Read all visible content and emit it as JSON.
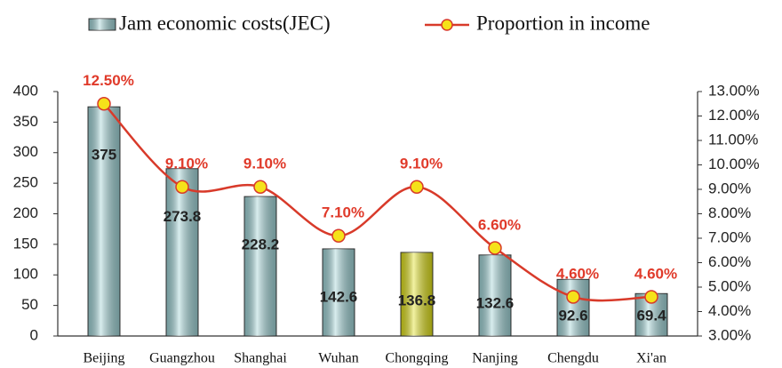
{
  "chart_data": {
    "type": "bar",
    "categories": [
      "Beijing",
      "Guangzhou",
      "Shanghai",
      "Wuhan",
      "Chongqing",
      "Nanjing",
      "Chengdu",
      "Xi'an"
    ],
    "series": [
      {
        "name": "Jam economic costs(JEC)",
        "color": "#9fd3d6",
        "colors": [
          "#9fd3d6",
          "#9fd3d6",
          "#9fd3d6",
          "#9fd3d6",
          "#e0e01a",
          "#9fd3d6",
          "#9fd3d6",
          "#9fd3d6"
        ],
        "values": [
          375,
          273.8,
          228.2,
          142.6,
          136.8,
          132.6,
          92.6,
          69.4
        ]
      },
      {
        "name": "Proportion in income",
        "type": "line",
        "axis": "y2",
        "color": "#d83a2a",
        "marker_color": "#f5e21a",
        "values": [
          12.5,
          9.1,
          9.1,
          7.1,
          9.1,
          6.6,
          4.6,
          4.6
        ],
        "value_labels": [
          "12.50%",
          "9.10%",
          "9.10%",
          "7.10%",
          "9.10%",
          "6.60%",
          "4.60%",
          "4.60%"
        ]
      }
    ],
    "ylim": [
      0,
      400
    ],
    "yticks": [
      0,
      50,
      100,
      150,
      200,
      250,
      300,
      350,
      400
    ],
    "y2lim": [
      3,
      13
    ],
    "y2ticks": [
      {
        "value": 3,
        "label": "3.00%"
      },
      {
        "value": 4,
        "label": "4.00%"
      },
      {
        "value": 5,
        "label": "5.00%"
      },
      {
        "value": 6,
        "label": "6.00%"
      },
      {
        "value": 7,
        "label": "7.00%"
      },
      {
        "value": 8,
        "label": "8.00%"
      },
      {
        "value": 9,
        "label": "9.00%"
      },
      {
        "value": 10,
        "label": "10.00%"
      },
      {
        "value": 11,
        "label": "11.00%"
      },
      {
        "value": 12,
        "label": "12.00%"
      },
      {
        "value": 13,
        "label": "13.00%"
      }
    ],
    "legend": "top"
  }
}
